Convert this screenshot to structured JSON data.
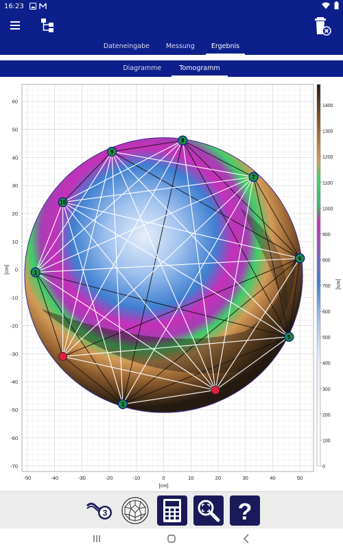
{
  "status_bar": {
    "time": "16:23"
  },
  "tabs": [
    {
      "label": "Dateneingabe",
      "active": false
    },
    {
      "label": "Messung",
      "active": false
    },
    {
      "label": "Ergebnis",
      "active": true
    }
  ],
  "subtabs": [
    {
      "label": "Diagramme",
      "active": false
    },
    {
      "label": "Tomogramm",
      "active": true
    }
  ],
  "tomogram": {
    "x_axis": {
      "label": "[cm]",
      "ticks": [
        -50,
        -40,
        -30,
        -20,
        -10,
        0,
        10,
        20,
        30,
        40,
        50
      ],
      "range": [
        -52,
        55
      ]
    },
    "y_axis": {
      "label": "[cm]",
      "ticks": [
        60,
        50,
        40,
        30,
        20,
        10,
        0,
        -10,
        -20,
        -30,
        -40,
        -50,
        -60,
        -70
      ],
      "range": [
        -72,
        66
      ]
    },
    "colorbar": {
      "unit": "[m/s]",
      "ticks": [
        1400,
        1300,
        1200,
        1100,
        1000,
        900,
        800,
        700,
        600,
        500,
        400,
        300,
        200,
        100,
        0
      ],
      "colors": {
        "high": "#241a10",
        "brown": "#8a5a2c",
        "tan": "#d39a58",
        "green": "#3ecf6a",
        "magenta": "#c630b8",
        "blue": "#3f7fd0",
        "light": "#e6eef9"
      }
    },
    "sensors": [
      {
        "id": "1",
        "x": -47,
        "y": -1,
        "status": "ok"
      },
      {
        "id": "3",
        "x": -15,
        "y": -48,
        "status": "ok"
      },
      {
        "id": "5",
        "x": 46,
        "y": -24,
        "status": "ok"
      },
      {
        "id": "6",
        "x": 50,
        "y": 4,
        "status": "ok"
      },
      {
        "id": "7",
        "x": 33,
        "y": 33,
        "status": "ok"
      },
      {
        "id": "8",
        "x": 7,
        "y": 46,
        "status": "ok"
      },
      {
        "id": "9",
        "x": -19,
        "y": 42,
        "status": "ok"
      },
      {
        "id": "10",
        "x": -37,
        "y": 24,
        "status": "ok"
      },
      {
        "id": "",
        "x": -37,
        "y": -31,
        "status": "error"
      },
      {
        "id": "",
        "x": 19,
        "y": -43,
        "status": "error"
      }
    ],
    "paths_white": [
      [
        0,
        3
      ],
      [
        0,
        4
      ],
      [
        0,
        5
      ],
      [
        0,
        6
      ],
      [
        0,
        7
      ],
      [
        0,
        9
      ],
      [
        1,
        4
      ],
      [
        1,
        6
      ],
      [
        1,
        7
      ],
      [
        1,
        9
      ],
      [
        2,
        6
      ],
      [
        2,
        7
      ],
      [
        2,
        8
      ],
      [
        2,
        9
      ],
      [
        3,
        7
      ],
      [
        3,
        9
      ],
      [
        4,
        6
      ],
      [
        4,
        7
      ],
      [
        4,
        8
      ],
      [
        4,
        9
      ],
      [
        5,
        7
      ],
      [
        5,
        8
      ],
      [
        5,
        9
      ],
      [
        6,
        8
      ],
      [
        6,
        9
      ],
      [
        7,
        8
      ],
      [
        7,
        9
      ],
      [
        8,
        9
      ]
    ],
    "paths_black": [
      [
        0,
        1
      ],
      [
        0,
        2
      ],
      [
        0,
        8
      ],
      [
        1,
        2
      ],
      [
        1,
        3
      ],
      [
        1,
        5
      ],
      [
        1,
        8
      ],
      [
        2,
        3
      ],
      [
        2,
        4
      ],
      [
        2,
        5
      ],
      [
        3,
        4
      ],
      [
        3,
        5
      ],
      [
        3,
        6
      ],
      [
        3,
        8
      ],
      [
        4,
        5
      ],
      [
        5,
        6
      ],
      [
        6,
        7
      ]
    ]
  },
  "toolbar": [
    {
      "icon": "sensor-3-icon",
      "label": "3"
    },
    {
      "icon": "network-sphere-icon",
      "label": ""
    },
    {
      "icon": "calculator-icon",
      "label": ""
    },
    {
      "icon": "zoom-fit-icon",
      "label": ""
    },
    {
      "icon": "help-icon",
      "label": "?"
    }
  ]
}
